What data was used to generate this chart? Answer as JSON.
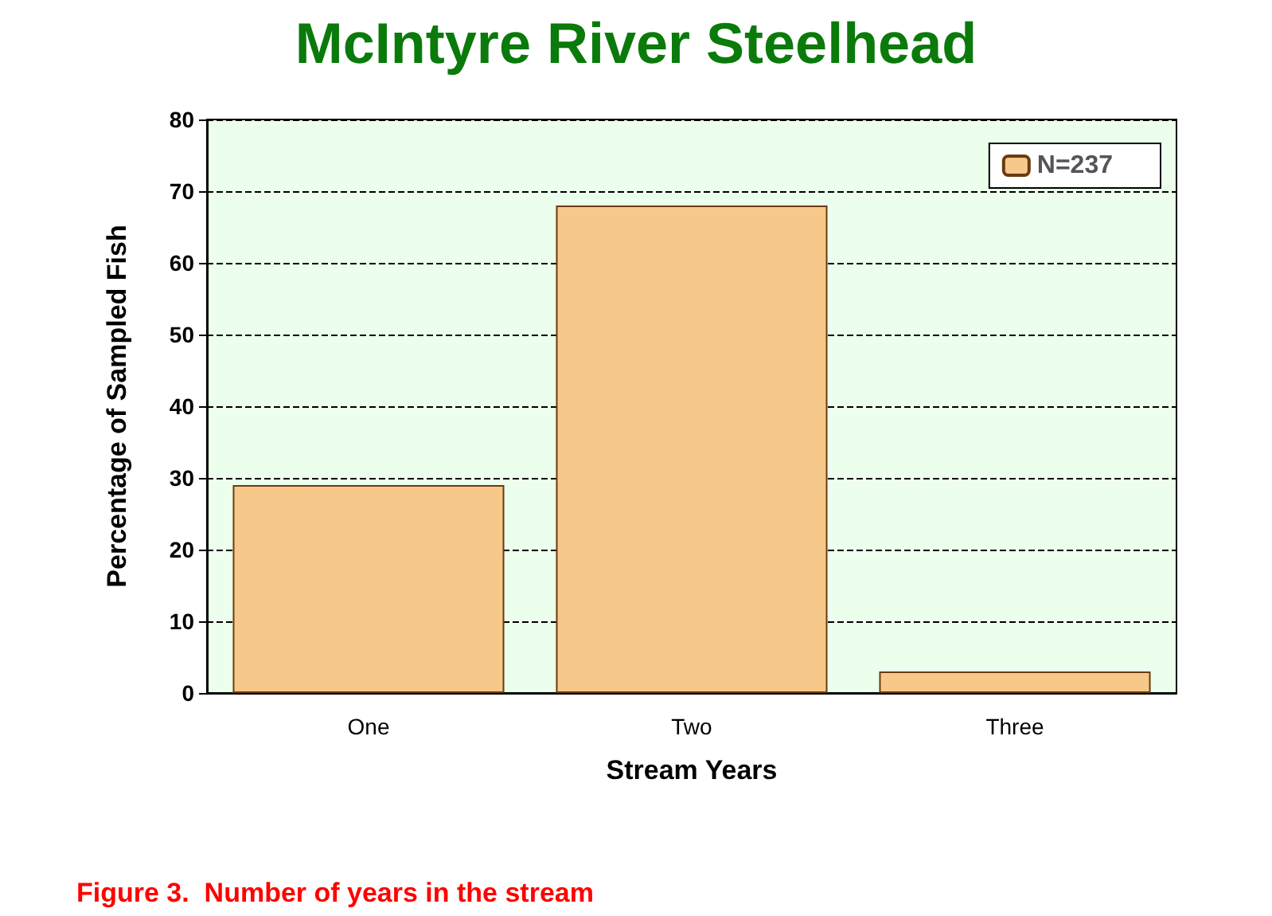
{
  "chart_data": {
    "type": "bar",
    "title": "McIntyre River Steelhead",
    "xlabel": "Stream Years",
    "ylabel": "Percentage of Sampled Fish",
    "categories": [
      "One",
      "Two",
      "Three"
    ],
    "series": [
      {
        "name": "N=237",
        "color": "#f6c98a",
        "values": [
          29,
          68,
          3
        ]
      }
    ],
    "ylim": [
      0,
      80
    ],
    "yticks": [
      0,
      10,
      20,
      30,
      40,
      50,
      60,
      70,
      80
    ],
    "grid": "y",
    "legend": "top right",
    "annotations": [
      "Figure 3.  Number of years in the stream"
    ]
  }
}
